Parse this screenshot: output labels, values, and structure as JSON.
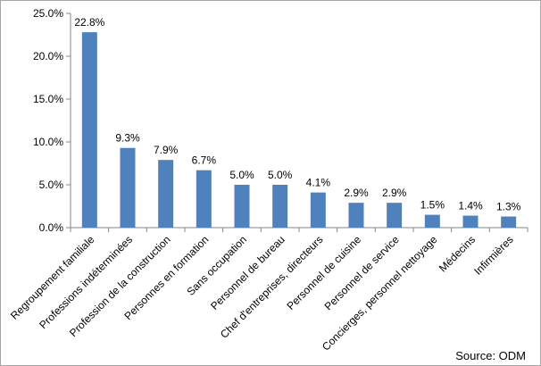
{
  "chart_data": {
    "type": "bar",
    "categories": [
      "Regroupement familiale",
      "Professions indéterminées",
      "Profession de la construction",
      "Personnes en formation",
      "Sans occupation",
      "Personnel de bureau",
      "Chef d'entreprises, directeurs",
      "Personnel de cuisine",
      "Personnel de service",
      "Concierges, personnel nettoyage",
      "Médecins",
      "Infirmières"
    ],
    "values": [
      22.8,
      9.3,
      7.9,
      6.7,
      5.0,
      5.0,
      4.1,
      2.9,
      2.9,
      1.5,
      1.4,
      1.3
    ],
    "value_labels": [
      "22.8%",
      "9.3%",
      "7.9%",
      "6.7%",
      "5.0%",
      "5.0%",
      "4.1%",
      "2.9%",
      "2.9%",
      "1.5%",
      "1.4%",
      "1.3%"
    ],
    "y_ticks": [
      0,
      5,
      10,
      15,
      20,
      25
    ],
    "y_tick_labels": [
      "0.0%",
      "5.0%",
      "10.0%",
      "15.0%",
      "20.0%",
      "25.0%"
    ],
    "ylim": [
      0,
      25
    ],
    "title": "",
    "xlabel": "",
    "ylabel": "",
    "grid": false,
    "legend": "none",
    "bar_color": "#4f81bd",
    "source": "Source: ODM"
  }
}
